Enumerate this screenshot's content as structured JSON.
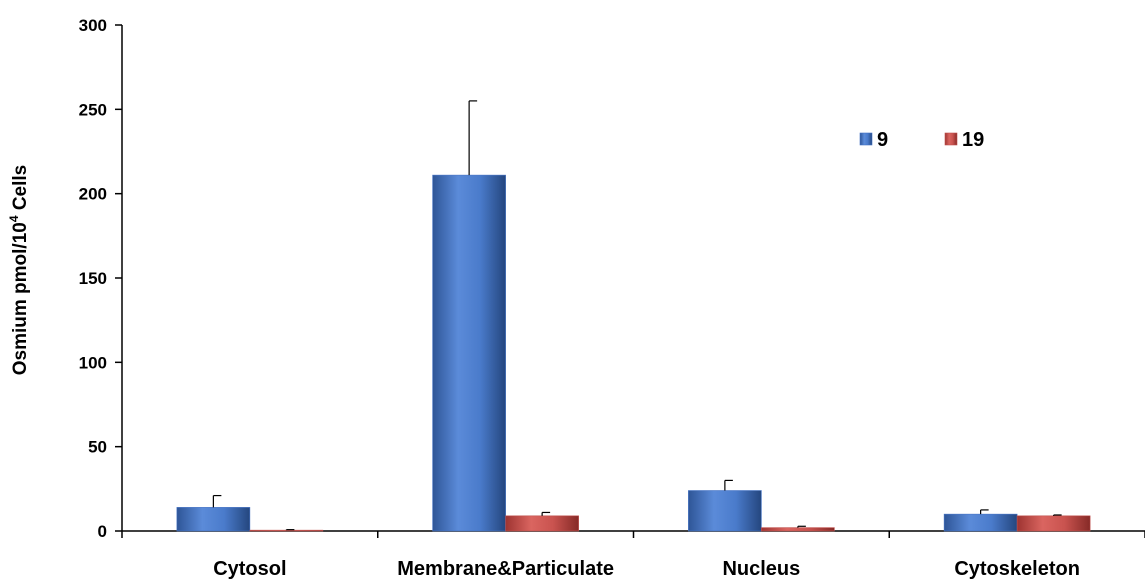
{
  "chart_data": {
    "type": "bar",
    "title": "",
    "xlabel": "",
    "ylabel": {
      "main": "Osmium pmol/10",
      "superscript": "4",
      "suffix": " Cells"
    },
    "ylim": [
      0,
      300
    ],
    "yticks": [
      0,
      50,
      100,
      150,
      200,
      250,
      300
    ],
    "categories": [
      "Cytosol",
      "Membrane&Particulate",
      "Nucleus",
      "Cytoskeleton"
    ],
    "series": [
      {
        "name": "9",
        "values": [
          14,
          211,
          24,
          10
        ],
        "errors": [
          7,
          44,
          6,
          2.5
        ],
        "color": "#4472C4"
      },
      {
        "name": "19",
        "values": [
          0.5,
          9,
          2,
          9
        ],
        "errors": [
          0.3,
          2,
          0.8,
          0.5
        ],
        "color": "#C0504D"
      }
    ],
    "grid": false,
    "legend": "top-right"
  }
}
